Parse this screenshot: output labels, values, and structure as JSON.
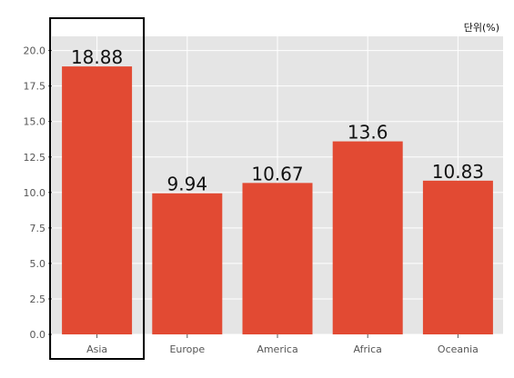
{
  "chart_data": {
    "type": "bar",
    "title": "",
    "xlabel": "",
    "ylabel": "",
    "unit_label": "단위(%)",
    "categories": [
      "Asia",
      "Europe",
      "America",
      "Africa",
      "Oceania"
    ],
    "values": [
      18.88,
      9.94,
      10.67,
      13.6,
      10.83
    ],
    "data_labels": [
      "18.88",
      "9.94",
      "10.67",
      "13.6",
      "10.83"
    ],
    "ylim": [
      0,
      21
    ],
    "yticks": [
      0.0,
      2.5,
      5.0,
      7.5,
      10.0,
      12.5,
      15.0,
      17.5,
      20.0
    ],
    "ytick_labels": [
      "0.0",
      "2.5",
      "5.0",
      "7.5",
      "10.0",
      "12.5",
      "15.0",
      "17.5",
      "20.0"
    ],
    "grid": true,
    "highlighted_category": "Asia",
    "colors": {
      "bar": "#e24a33",
      "plot_background": "#e5e5e5",
      "grid": "#ffffff",
      "highlight_box": "#000000"
    }
  }
}
